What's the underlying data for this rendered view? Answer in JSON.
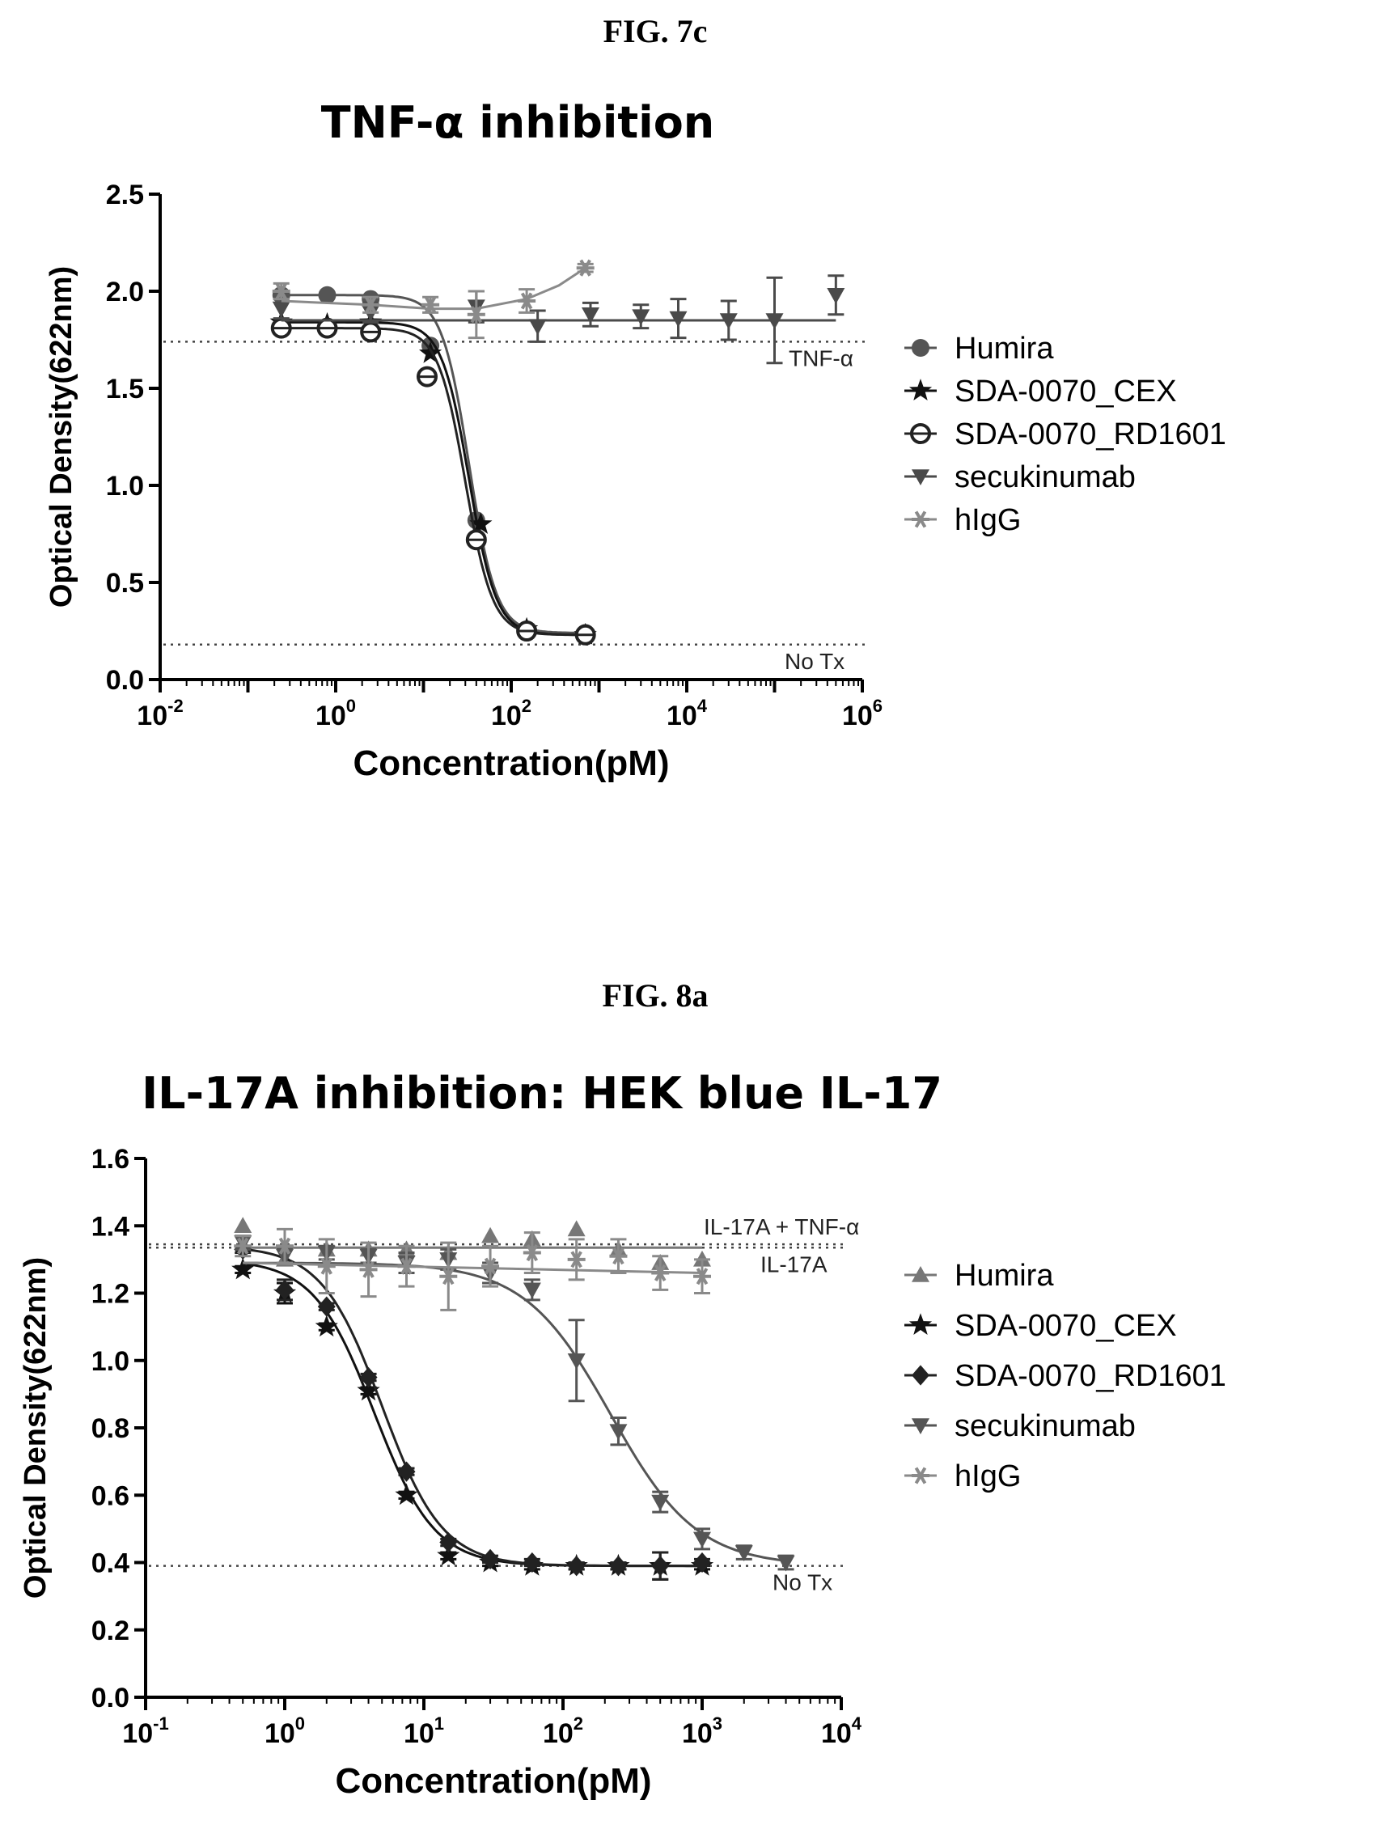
{
  "figures": [
    {
      "label": "FIG. 7c"
    },
    {
      "label": "FIG. 8a"
    }
  ],
  "chart_data": [
    {
      "type": "scatter",
      "title": "TNF-α inhibition",
      "xlabel": "Concentration(pM)",
      "ylabel": "Optical Density(622nm)",
      "x_scale": "log",
      "xlim": [
        0.01,
        1000000
      ],
      "ylim": [
        0,
        2.5
      ],
      "x_ticks": [
        {
          "value": 0.01,
          "base": "10",
          "exp": "-2"
        },
        {
          "value": 1,
          "base": "10",
          "exp": "0"
        },
        {
          "value": 100,
          "base": "10",
          "exp": "2"
        },
        {
          "value": 10000,
          "base": "10",
          "exp": "4"
        },
        {
          "value": 1000000,
          "base": "10",
          "exp": "6"
        }
      ],
      "y_ticks": [
        {
          "value": 0,
          "label": "0.0"
        },
        {
          "value": 0.5,
          "label": "0.5"
        },
        {
          "value": 1,
          "label": "1.0"
        },
        {
          "value": 1.5,
          "label": "1.5"
        },
        {
          "value": 2,
          "label": "2.0"
        },
        {
          "value": 2.5,
          "label": "2.5"
        }
      ],
      "legend_position": "right",
      "reference_lines": [
        {
          "y": 1.74,
          "label": "TNF-α"
        },
        {
          "y": 0.18,
          "label": "No Tx"
        }
      ],
      "series": [
        {
          "name": "Humira",
          "marker": "circle",
          "color": "#555555",
          "points": [
            [
              0.24,
              1.98
            ],
            [
              0.8,
              1.98
            ],
            [
              2.5,
              1.96
            ],
            [
              12,
              1.72
            ],
            [
              40,
              0.82
            ],
            [
              150,
              0.25
            ],
            [
              700,
              0.24
            ]
          ],
          "curve": {
            "bottom": 0.24,
            "top": 1.98,
            "ec50": 33,
            "hill": 2.8,
            "xmin": 0.24,
            "xmax": 700
          }
        },
        {
          "name": "SDA-0070_CEX",
          "marker": "star",
          "color": "#111111",
          "points": [
            [
              0.24,
              1.84
            ],
            [
              0.8,
              1.83
            ],
            [
              2.5,
              1.84
            ],
            [
              12,
              1.68
            ],
            [
              45,
              0.8
            ],
            [
              150,
              0.26
            ],
            [
              700,
              0.23
            ]
          ],
          "curve": {
            "bottom": 0.23,
            "top": 1.84,
            "ec50": 33,
            "hill": 2.8,
            "xmin": 0.24,
            "xmax": 700
          }
        },
        {
          "name": "SDA-0070_RD1601",
          "marker": "circle-open",
          "color": "#222222",
          "points": [
            [
              0.24,
              1.81
            ],
            [
              0.8,
              1.81
            ],
            [
              2.5,
              1.79
            ],
            [
              11,
              1.56
            ],
            [
              40,
              0.72
            ],
            [
              150,
              0.25
            ],
            [
              700,
              0.23
            ]
          ],
          "curve": {
            "bottom": 0.23,
            "top": 1.81,
            "ec50": 30,
            "hill": 2.8,
            "xmin": 0.24,
            "xmax": 700
          }
        },
        {
          "name": "secukinumab",
          "marker": "triangle-down",
          "color": "#4a4a4a",
          "points": [
            [
              0.24,
              1.91
            ],
            [
              2.5,
              1.89
            ],
            [
              40,
              1.92
            ],
            [
              200,
              1.82
            ],
            [
              800,
              1.88
            ],
            [
              3000,
              1.87
            ],
            [
              8000,
              1.86
            ],
            [
              30000,
              1.85
            ],
            [
              100000,
              1.85
            ],
            [
              500000,
              1.98
            ]
          ],
          "error": [
            0.05,
            0.05,
            0.08,
            0.08,
            0.06,
            0.06,
            0.1,
            0.1,
            0.22,
            0.1
          ],
          "fit_line": {
            "y": 1.85,
            "xmin": 0.24,
            "xmax": 500000
          }
        },
        {
          "name": "hIgG",
          "marker": "asterisk",
          "color": "#8a8a8a",
          "points": [
            [
              0.24,
              2.0
            ],
            [
              2.5,
              1.93
            ],
            [
              12,
              1.93
            ],
            [
              40,
              1.88
            ],
            [
              150,
              1.95
            ],
            [
              700,
              2.12
            ]
          ],
          "error": [
            0.04,
            0.04,
            0.04,
            0.12,
            0.06,
            0.02
          ],
          "fit_curve": [
            [
              0.24,
              1.95
            ],
            [
              2.5,
              1.93
            ],
            [
              12,
              1.91
            ],
            [
              40,
              1.91
            ],
            [
              150,
              1.96
            ],
            [
              350,
              2.03
            ],
            [
              700,
              2.12
            ]
          ]
        }
      ]
    },
    {
      "type": "scatter",
      "title": "IL-17A inhibition: HEK blue IL-17",
      "xlabel": "Concentration(pM)",
      "ylabel": "Optical Density(622nm)",
      "x_scale": "log",
      "xlim": [
        0.1,
        10000
      ],
      "ylim": [
        0,
        1.6
      ],
      "x_ticks": [
        {
          "value": 0.1,
          "base": "10",
          "exp": "-1"
        },
        {
          "value": 1,
          "base": "10",
          "exp": "0"
        },
        {
          "value": 10,
          "base": "10",
          "exp": "1"
        },
        {
          "value": 100,
          "base": "10",
          "exp": "2"
        },
        {
          "value": 1000,
          "base": "10",
          "exp": "3"
        },
        {
          "value": 10000,
          "base": "10",
          "exp": "4"
        }
      ],
      "y_ticks": [
        {
          "value": 0,
          "label": "0.0"
        },
        {
          "value": 0.2,
          "label": "0.2"
        },
        {
          "value": 0.4,
          "label": "0.4"
        },
        {
          "value": 0.6,
          "label": "0.6"
        },
        {
          "value": 0.8,
          "label": "0.8"
        },
        {
          "value": 1.0,
          "label": "1.0"
        },
        {
          "value": 1.2,
          "label": "1.2"
        },
        {
          "value": 1.4,
          "label": "1.4"
        },
        {
          "value": 1.6,
          "label": "1.6"
        }
      ],
      "legend_position": "right",
      "reference_lines": [
        {
          "y": 1.345,
          "label": "IL-17A + TNF-α",
          "label_pos": "above"
        },
        {
          "y": 1.335,
          "label": "IL-17A",
          "label_pos": "below"
        },
        {
          "y": 0.39,
          "label": "No Tx",
          "label_pos": "below"
        }
      ],
      "series": [
        {
          "name": "Humira",
          "marker": "triangle-up",
          "color": "#777777",
          "points": [
            [
              0.5,
              1.4
            ],
            [
              1,
              1.3
            ],
            [
              2,
              1.33
            ],
            [
              4,
              1.33
            ],
            [
              7.5,
              1.33
            ],
            [
              15,
              1.32
            ],
            [
              30,
              1.37
            ],
            [
              60,
              1.36
            ],
            [
              125,
              1.39
            ],
            [
              250,
              1.33
            ],
            [
              500,
              1.29
            ],
            [
              1000,
              1.3
            ]
          ],
          "fit_line": {
            "y": 1.335,
            "xmin": 0.5,
            "xmax": 1000
          }
        },
        {
          "name": "SDA-0070_CEX",
          "marker": "star",
          "color": "#111111",
          "points": [
            [
              0.5,
              1.27
            ],
            [
              1,
              1.2
            ],
            [
              2,
              1.1
            ],
            [
              4,
              0.91
            ],
            [
              7.5,
              0.6
            ],
            [
              15,
              0.42
            ],
            [
              30,
              0.4
            ],
            [
              60,
              0.39
            ],
            [
              125,
              0.39
            ],
            [
              250,
              0.39
            ],
            [
              500,
              0.39
            ],
            [
              1000,
              0.39
            ]
          ],
          "error": [
            0.01,
            0.03,
            0.01,
            0.01,
            0.01,
            0.01,
            0.01,
            0.01,
            0.01,
            0.01,
            0.04,
            0.01
          ],
          "curve": {
            "bottom": 0.39,
            "top": 1.3,
            "ec50": 4.4,
            "hill": 2.0,
            "xmin": 0.5,
            "xmax": 1000
          }
        },
        {
          "name": "SDA-0070_RD1601",
          "marker": "diamond",
          "color": "#222222",
          "points": [
            [
              0.5,
              1.33
            ],
            [
              1,
              1.21
            ],
            [
              2,
              1.16
            ],
            [
              4,
              0.95
            ],
            [
              7.5,
              0.67
            ],
            [
              15,
              0.46
            ],
            [
              30,
              0.41
            ],
            [
              60,
              0.4
            ],
            [
              125,
              0.39
            ],
            [
              250,
              0.39
            ],
            [
              500,
              0.39
            ],
            [
              1000,
              0.4
            ]
          ],
          "error": [
            0.01,
            0.03,
            0.01,
            0.01,
            0.01,
            0.01,
            0.01,
            0.01,
            0.01,
            0.01,
            0.04,
            0.01
          ],
          "curve": {
            "bottom": 0.39,
            "top": 1.34,
            "ec50": 5.0,
            "hill": 2.0,
            "xmin": 0.5,
            "xmax": 1000
          }
        },
        {
          "name": "secukinumab",
          "marker": "triangle-down",
          "color": "#555555",
          "points": [
            [
              0.5,
              1.35
            ],
            [
              1,
              1.31
            ],
            [
              2,
              1.32
            ],
            [
              4,
              1.31
            ],
            [
              7.5,
              1.29
            ],
            [
              15,
              1.3
            ],
            [
              30,
              1.26
            ],
            [
              60,
              1.21
            ],
            [
              125,
              1.0
            ],
            [
              250,
              0.79
            ],
            [
              500,
              0.58
            ],
            [
              1000,
              0.47
            ],
            [
              2000,
              0.43
            ],
            [
              4000,
              0.4
            ]
          ],
          "error": [
            0.02,
            0.02,
            0.02,
            0.02,
            0.03,
            0.03,
            0.03,
            0.03,
            0.12,
            0.04,
            0.03,
            0.03,
            0.02,
            0.02
          ],
          "curve": {
            "bottom": 0.39,
            "top": 1.29,
            "ec50": 220,
            "hill": 1.4,
            "xmin": 0.5,
            "xmax": 4000
          }
        },
        {
          "name": "hIgG",
          "marker": "asterisk",
          "color": "#8a8a8a",
          "points": [
            [
              0.5,
              1.34
            ],
            [
              1,
              1.34
            ],
            [
              2,
              1.28
            ],
            [
              4,
              1.27
            ],
            [
              7.5,
              1.28
            ],
            [
              15,
              1.25
            ],
            [
              30,
              1.28
            ],
            [
              60,
              1.32
            ],
            [
              125,
              1.3
            ],
            [
              250,
              1.31
            ],
            [
              500,
              1.26
            ],
            [
              1000,
              1.25
            ]
          ],
          "error": [
            0.03,
            0.05,
            0.08,
            0.08,
            0.06,
            0.1,
            0.06,
            0.06,
            0.06,
            0.05,
            0.05,
            0.05
          ],
          "fit_line": {
            "y": 1.29,
            "xmin": 0.5,
            "xmax": 1000,
            "end_y": 1.26
          }
        }
      ]
    }
  ]
}
